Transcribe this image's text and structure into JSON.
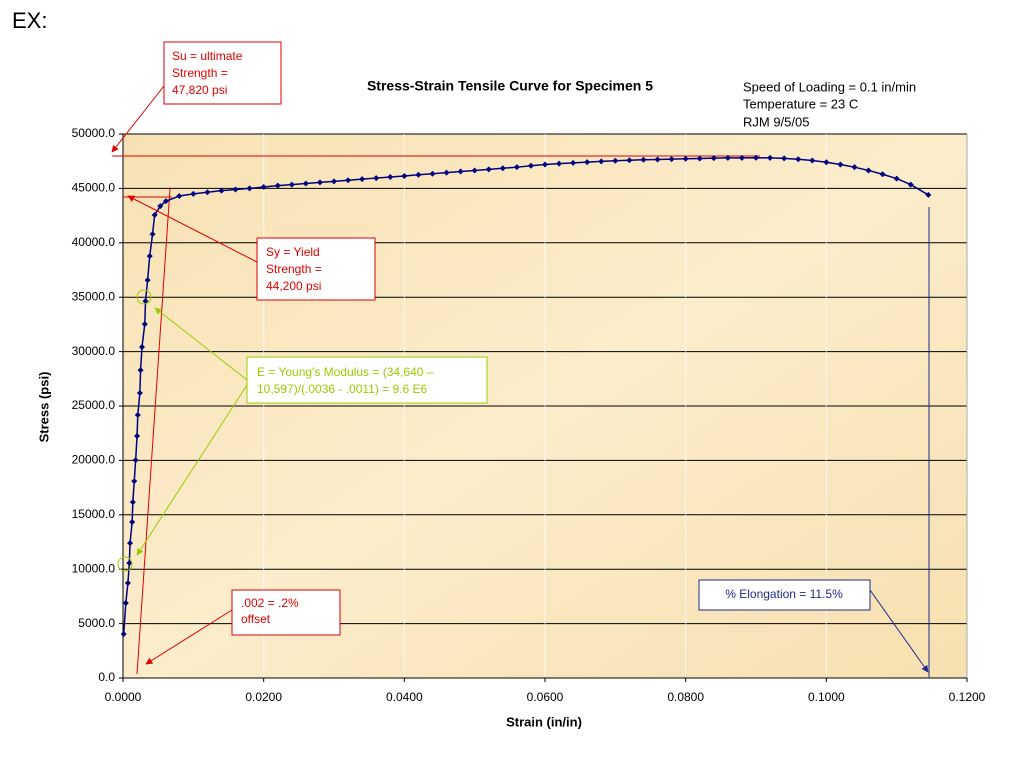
{
  "heading": "EX:",
  "chart_data": {
    "type": "line",
    "title": "Stress-Strain Tensile Curve for Specimen 5",
    "info": [
      "Speed of Loading = 0.1 in/min",
      "Temperature = 23 C",
      "RJM 9/5/05"
    ],
    "xlabel": "Strain (in/in)",
    "ylabel": "Stress (psi)",
    "xlim": [
      0,
      0.12
    ],
    "ylim": [
      0,
      50000
    ],
    "xticks": [
      {
        "value": 0,
        "label": "0.0000"
      },
      {
        "value": 0.02,
        "label": "0.0200"
      },
      {
        "value": 0.04,
        "label": "0.0400"
      },
      {
        "value": 0.06,
        "label": "0.0600"
      },
      {
        "value": 0.08,
        "label": "0.0800"
      },
      {
        "value": 0.1,
        "label": "0.1000"
      },
      {
        "value": 0.12,
        "label": "0.1200"
      }
    ],
    "yticks": [
      {
        "value": 0,
        "label": "0.0"
      },
      {
        "value": 5000,
        "label": "5000.0"
      },
      {
        "value": 10000,
        "label": "10000.0"
      },
      {
        "value": 15000,
        "label": "15000.0"
      },
      {
        "value": 20000,
        "label": "20000.0"
      },
      {
        "value": 25000,
        "label": "25000.0"
      },
      {
        "value": 30000,
        "label": "30000.0"
      },
      {
        "value": 35000,
        "label": "35000.0"
      },
      {
        "value": 40000,
        "label": "40000.0"
      },
      {
        "value": 45000,
        "label": "45000.0"
      },
      {
        "value": 50000,
        "label": "50000.0"
      }
    ],
    "grid": true,
    "color": "#000080",
    "x": [
      0.0001,
      0.0004,
      0.0007,
      0.0009,
      0.001,
      0.0013,
      0.0014,
      0.0016,
      0.0018,
      0.002,
      0.0021,
      0.0024,
      0.0025,
      0.0027,
      0.0031,
      0.0032,
      0.0035,
      0.0038,
      0.0042,
      0.0045,
      0.0053,
      0.0061,
      0.008,
      0.01,
      0.012,
      0.014,
      0.016,
      0.018,
      0.02,
      0.022,
      0.024,
      0.026,
      0.028,
      0.03,
      0.032,
      0.034,
      0.036,
      0.038,
      0.04,
      0.042,
      0.044,
      0.046,
      0.048,
      0.05,
      0.052,
      0.054,
      0.056,
      0.058,
      0.06,
      0.062,
      0.064,
      0.066,
      0.068,
      0.07,
      0.072,
      0.074,
      0.076,
      0.078,
      0.08,
      0.082,
      0.084,
      0.086,
      0.088,
      0.09,
      0.092,
      0.094,
      0.096,
      0.098,
      0.1,
      0.102,
      0.104,
      0.106,
      0.108,
      0.11,
      0.112,
      0.1145
    ],
    "values": [
      4040,
      6890,
      8730,
      10570,
      12400,
      14340,
      16170,
      18100,
      20030,
      22240,
      24170,
      26190,
      28300,
      30420,
      32530,
      34640,
      36570,
      38780,
      40800,
      42550,
      43370,
      43830,
      44300,
      44500,
      44650,
      44800,
      44900,
      45000,
      45130,
      45250,
      45350,
      45450,
      45550,
      45650,
      45750,
      45850,
      45950,
      46050,
      46140,
      46250,
      46350,
      46450,
      46550,
      46650,
      46750,
      46850,
      46950,
      47080,
      47200,
      47280,
      47350,
      47420,
      47480,
      47540,
      47590,
      47630,
      47660,
      47690,
      47720,
      47750,
      47780,
      47800,
      47810,
      47820,
      47800,
      47760,
      47680,
      47560,
      47400,
      47200,
      46950,
      46650,
      46300,
      45900,
      45350,
      44400
    ],
    "annotations": {
      "ultimate": [
        "Su = ultimate",
        "Strength =",
        "47,820 psi"
      ],
      "yield": [
        "Sy = Yield",
        "Strength =",
        "44,200 psi"
      ],
      "modulus": [
        "E = Young's Modulus = (34,640 –",
        "10,597)/(.0036 - .0011) = 9.6 E6"
      ],
      "offset": [
        ".002 = .2%",
        "offset"
      ],
      "elongation": [
        "% Elongation = 11.5%"
      ]
    }
  }
}
